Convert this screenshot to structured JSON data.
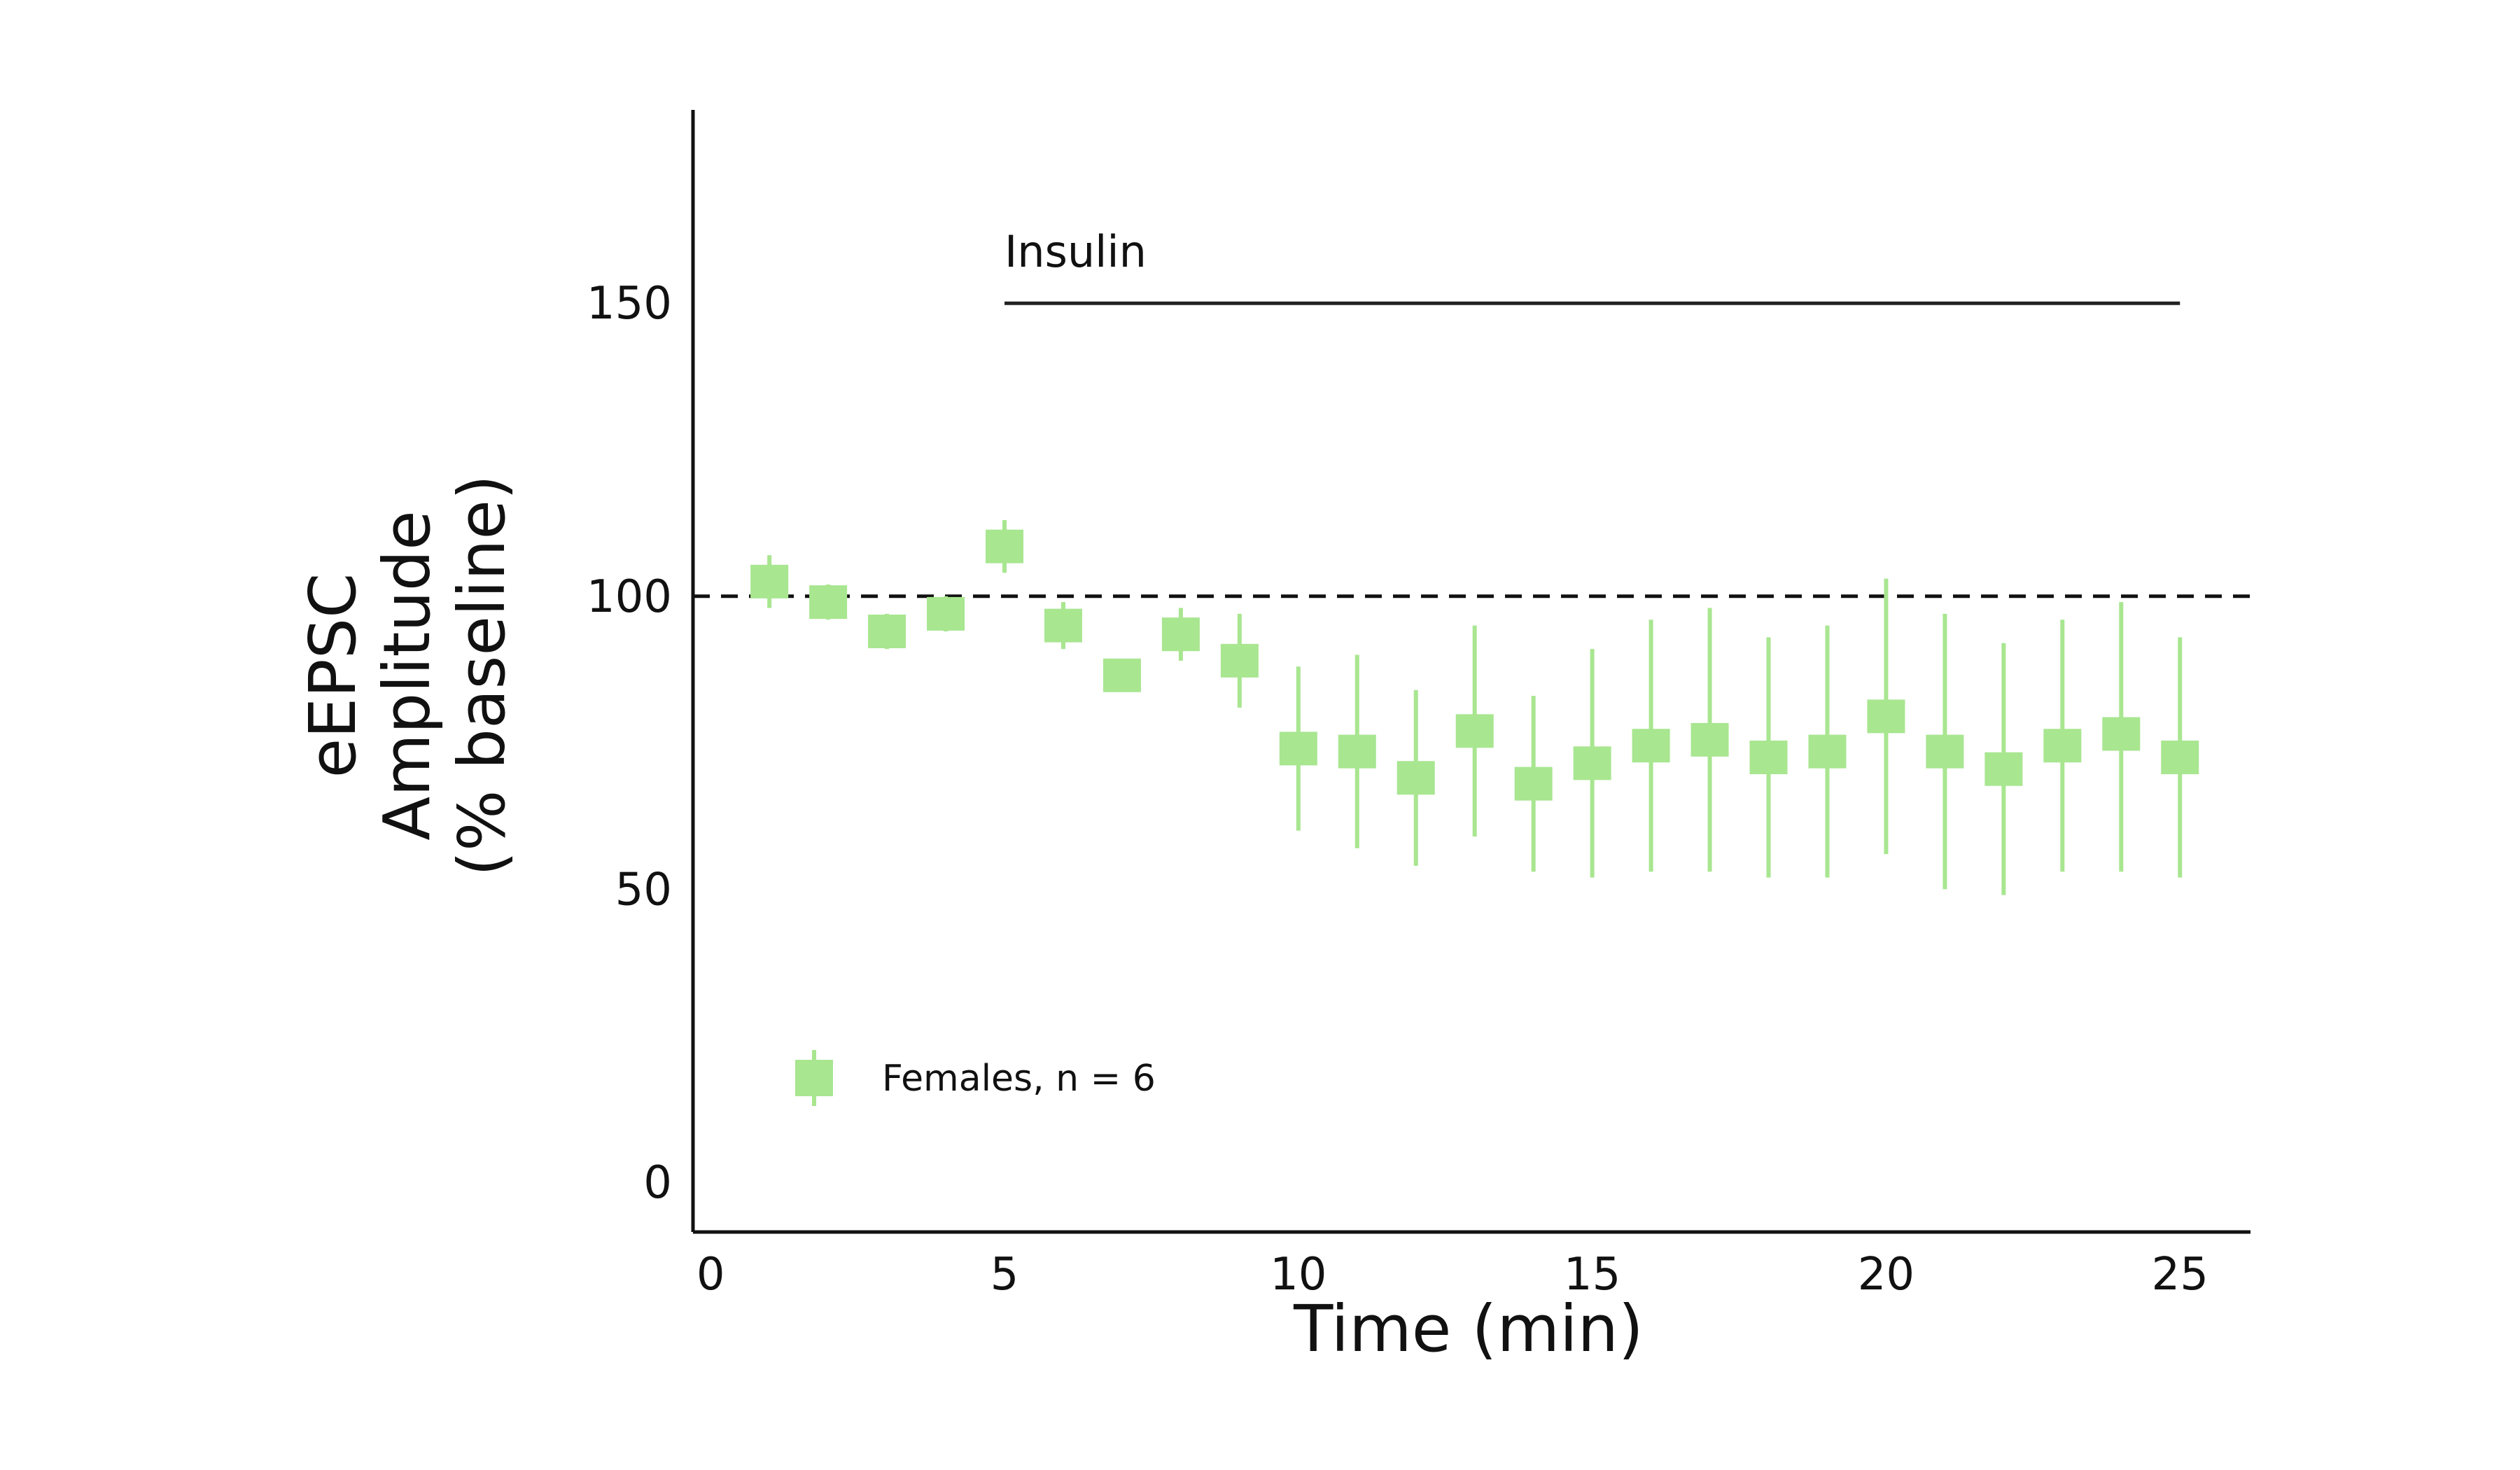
{
  "chart_data": {
    "type": "scatter",
    "title": "",
    "xlabel": "Time (min)",
    "ylabel": [
      "eEPSC",
      "Amplitude",
      "(% baseline)"
    ],
    "xlim": [
      -0.3,
      26.2
    ],
    "ylim": [
      -8.5,
      183
    ],
    "xticks": [
      0,
      5,
      10,
      15,
      20,
      25
    ],
    "yticks": [
      0,
      50,
      100,
      150
    ],
    "baseline": 100,
    "grid": false,
    "legend_position": "bottom-left",
    "marker": "square",
    "color": "#a8e690",
    "annotation": {
      "text": "Insulin",
      "x_start": 5,
      "x_end": 25,
      "y": 150
    },
    "series": [
      {
        "name": "Females, n = 6",
        "points": [
          {
            "x": 1,
            "y": 102.5,
            "lo": 98,
            "hi": 107
          },
          {
            "x": 2,
            "y": 99,
            "lo": 96,
            "hi": 102
          },
          {
            "x": 3,
            "y": 94,
            "lo": 91,
            "hi": 97
          },
          {
            "x": 4,
            "y": 97,
            "lo": 94,
            "hi": 100
          },
          {
            "x": 5,
            "y": 108.5,
            "lo": 104,
            "hi": 113
          },
          {
            "x": 6,
            "y": 95,
            "lo": 91,
            "hi": 99
          },
          {
            "x": 7,
            "y": 86.5,
            "lo": 84,
            "hi": 89
          },
          {
            "x": 8,
            "y": 93.5,
            "lo": 89,
            "hi": 98
          },
          {
            "x": 9,
            "y": 89,
            "lo": 81,
            "hi": 97
          },
          {
            "x": 10,
            "y": 74,
            "lo": 60,
            "hi": 88
          },
          {
            "x": 11,
            "y": 73.5,
            "lo": 57,
            "hi": 90
          },
          {
            "x": 12,
            "y": 69,
            "lo": 54,
            "hi": 84
          },
          {
            "x": 13,
            "y": 77,
            "lo": 59,
            "hi": 95
          },
          {
            "x": 14,
            "y": 68,
            "lo": 53,
            "hi": 83
          },
          {
            "x": 15,
            "y": 71.5,
            "lo": 52,
            "hi": 91
          },
          {
            "x": 16,
            "y": 74.5,
            "lo": 53,
            "hi": 96
          },
          {
            "x": 17,
            "y": 75.5,
            "lo": 53,
            "hi": 98
          },
          {
            "x": 18,
            "y": 72.5,
            "lo": 52,
            "hi": 93
          },
          {
            "x": 19,
            "y": 73.5,
            "lo": 52,
            "hi": 95
          },
          {
            "x": 20,
            "y": 79.5,
            "lo": 56,
            "hi": 103
          },
          {
            "x": 21,
            "y": 73.5,
            "lo": 50,
            "hi": 97
          },
          {
            "x": 22,
            "y": 70.5,
            "lo": 49,
            "hi": 92
          },
          {
            "x": 23,
            "y": 74.5,
            "lo": 53,
            "hi": 96
          },
          {
            "x": 24,
            "y": 76.5,
            "lo": 53,
            "hi": 99
          },
          {
            "x": 25,
            "y": 72.5,
            "lo": 52,
            "hi": 93
          }
        ]
      }
    ]
  }
}
